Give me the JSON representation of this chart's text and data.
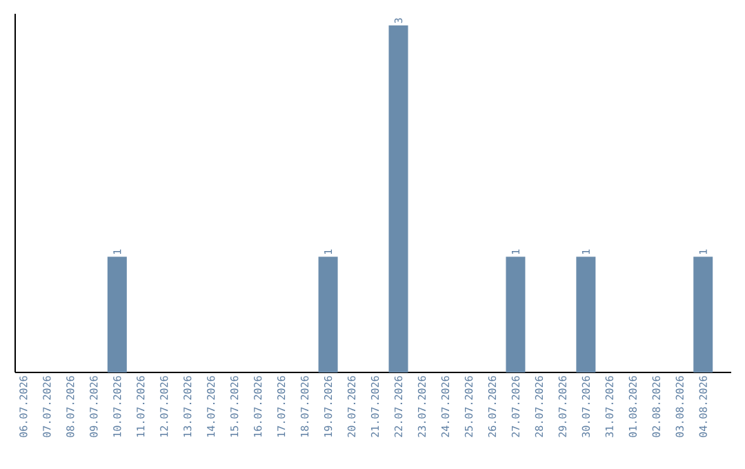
{
  "chart_data": {
    "type": "bar",
    "categories": [
      "06.07.2026",
      "07.07.2026",
      "08.07.2026",
      "09.07.2026",
      "10.07.2026",
      "11.07.2026",
      "12.07.2026",
      "13.07.2026",
      "14.07.2026",
      "15.07.2026",
      "16.07.2026",
      "17.07.2026",
      "18.07.2026",
      "19.07.2026",
      "20.07.2026",
      "21.07.2026",
      "22.07.2026",
      "23.07.2026",
      "24.07.2026",
      "25.07.2026",
      "26.07.2026",
      "27.07.2026",
      "28.07.2026",
      "29.07.2026",
      "30.07.2026",
      "31.07.2026",
      "01.08.2026",
      "02.08.2026",
      "03.08.2026",
      "04.08.2026"
    ],
    "values": [
      0,
      0,
      0,
      0,
      1,
      0,
      0,
      0,
      0,
      0,
      0,
      0,
      0,
      1,
      0,
      0,
      3,
      0,
      0,
      0,
      0,
      1,
      0,
      0,
      1,
      0,
      0,
      0,
      0,
      1
    ],
    "value_labels": [
      null,
      null,
      null,
      null,
      "1",
      null,
      null,
      null,
      null,
      null,
      null,
      null,
      null,
      "1",
      null,
      null,
      "3",
      null,
      null,
      null,
      null,
      "1",
      null,
      null,
      "1",
      null,
      null,
      null,
      null,
      "1"
    ],
    "color": "#6a8cac",
    "ylim": [
      0,
      3.1
    ],
    "tick_labels": "x"
  }
}
